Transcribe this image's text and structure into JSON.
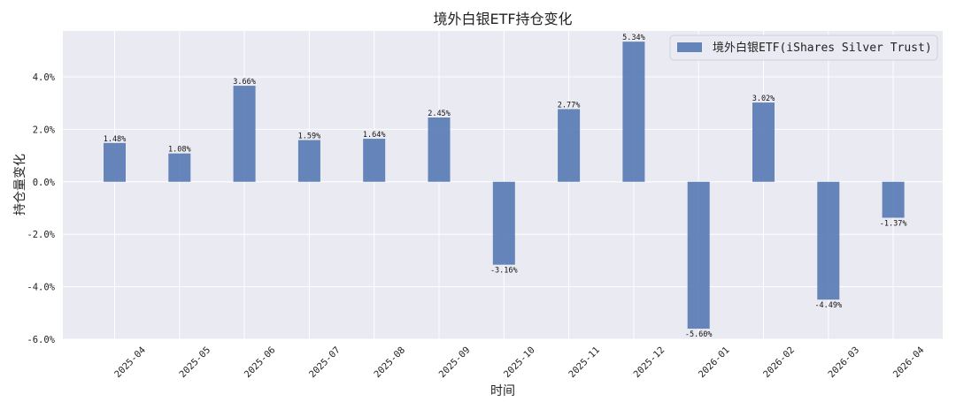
{
  "chart_data": {
    "type": "bar",
    "title": "境外白银ETF持仓变化",
    "xlabel": "时间",
    "ylabel": "持仓量变化",
    "categories": [
      "2025-04",
      "2025-05",
      "2025-06",
      "2025-07",
      "2025-08",
      "2025-09",
      "2025-10",
      "2025-11",
      "2025-12",
      "2026-01",
      "2026-02",
      "2026-03",
      "2026-04"
    ],
    "series": [
      {
        "name": "境外白银ETF(iShares Silver Trust)",
        "values": [
          1.48,
          1.08,
          3.66,
          1.59,
          1.64,
          2.45,
          -3.16,
          2.77,
          5.34,
          -5.6,
          3.02,
          -4.49,
          -1.37
        ],
        "labels": [
          "1.48%",
          "1.08%",
          "3.66%",
          "1.59%",
          "1.64%",
          "2.45%",
          "-3.16%",
          "2.77%",
          "5.34%",
          "-5.60%",
          "3.02%",
          "-4.49%",
          "-1.37%"
        ]
      }
    ],
    "yticks": [
      -6,
      -4,
      -2,
      0,
      2,
      4
    ],
    "ytick_labels": [
      "-6.0%",
      "-4.0%",
      "-2.0%",
      "0.0%",
      "2.0%",
      "4.0%"
    ],
    "ylim": [
      -6.0,
      5.75
    ],
    "grid": true,
    "legend_position": "top-right",
    "colors": {
      "bar": "#4c72b0",
      "plot_bg": "#eaeaf2",
      "grid": "#ffffff"
    }
  }
}
